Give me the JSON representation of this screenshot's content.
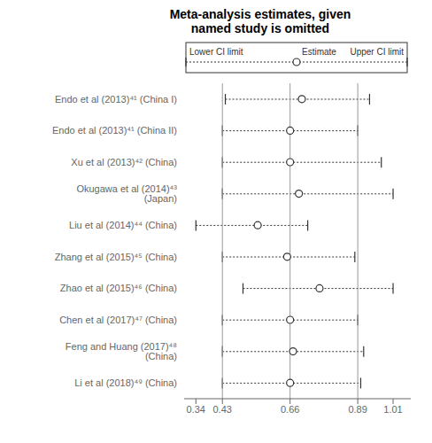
{
  "chart_data": {
    "type": "forest",
    "title": "Meta-analysis estimates, given\nnamed study is omitted",
    "categories": [
      "Endo et al (2013)⁴¹ (China I)",
      "Endo et al (2013)⁴¹ (China II)",
      "Xu et al (2013)⁴² (China)",
      "Okugawa et al (2014)⁴³ (Japan)",
      "Liu et al (2014)⁴⁴ (China)",
      "Zhang et al (2015)⁴⁵ (China)",
      "Zhao et al (2015)⁴⁶ (China)",
      "Chen et al (2017)⁴⁷ (China)",
      "Feng and Huang (2017)⁴⁸ (China)",
      "Li et al (2018)⁴⁹ (China)"
    ],
    "values": [
      0.7,
      0.66,
      0.66,
      0.69,
      0.55,
      0.65,
      0.76,
      0.66,
      0.67,
      0.66
    ],
    "lower_ci": [
      0.44,
      0.43,
      0.43,
      0.43,
      0.34,
      0.43,
      0.5,
      0.43,
      0.43,
      0.43
    ],
    "upper_ci": [
      0.93,
      0.89,
      0.97,
      1.01,
      0.72,
      0.88,
      1.01,
      0.89,
      0.91,
      0.9
    ],
    "xlim": [
      0.3,
      1.07
    ],
    "xticks": [
      0.34,
      0.43,
      0.66,
      0.89,
      1.01
    ],
    "reference_lines": [
      0.43,
      0.66,
      0.89
    ],
    "legend_entries": [
      "Lower CI limit",
      "Estimate",
      "Upper CI limit"
    ],
    "color": "#333333",
    "grid": false
  }
}
